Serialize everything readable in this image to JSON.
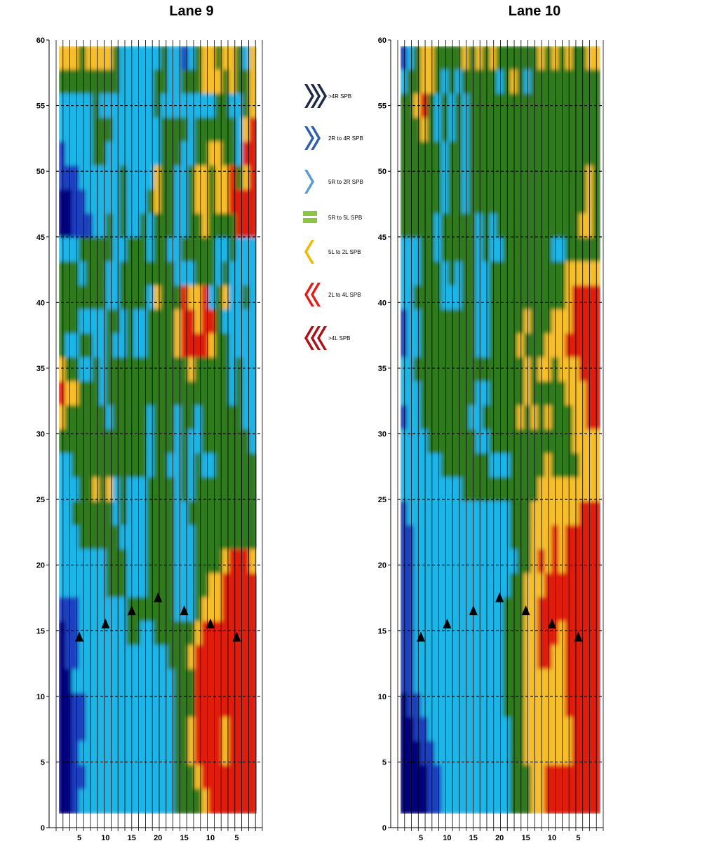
{
  "palette": {
    "gt4R": "#000080",
    "2Rto4R": "#1f3fbf",
    "5Rto2R": "#1fb5e8",
    "5Rto5L": "#2d7a1e",
    "5Lto2L": "#f5be2a",
    "2Lto4L": "#e01e10",
    "gt4L": "#7a0000"
  },
  "legend": [
    {
      "label": ">4R SPB",
      "icon": "chevron-right-3-icon",
      "color": "#1c2a45",
      "count": 3,
      "dir": "right"
    },
    {
      "label": "2R to 4R SPB",
      "icon": "chevron-right-2-icon",
      "color": "#2f5db0",
      "count": 2,
      "dir": "right"
    },
    {
      "label": "5R to 2R SPB",
      "icon": "chevron-right-1-icon",
      "color": "#5b9bd6",
      "count": 1,
      "dir": "right"
    },
    {
      "label": "5R to 5L SPB",
      "icon": "equals-bar-icon",
      "color": "#8cc63f",
      "count": 0,
      "dir": "equal"
    },
    {
      "label": "5L to 2L SPB",
      "icon": "chevron-left-1-icon",
      "color": "#f7b500",
      "count": 1,
      "dir": "left"
    },
    {
      "label": "2L to 4L SPB",
      "icon": "chevron-left-2-icon",
      "color": "#e31b1b",
      "count": 2,
      "dir": "left"
    },
    {
      "label": ">4L SPB",
      "icon": "chevron-left-3-icon",
      "color": "#b01015",
      "count": 3,
      "dir": "left"
    }
  ],
  "chart_data": [
    {
      "type": "heatmap",
      "title": "Lane 9",
      "ylim": [
        0,
        60
      ],
      "y_ticks": [
        0,
        5,
        10,
        15,
        20,
        25,
        30,
        35,
        40,
        45,
        50,
        55,
        60
      ],
      "x_tick_labels": [
        "5",
        "10",
        "15",
        "20",
        "15",
        "10",
        "5"
      ],
      "grid": "dashed horizontal at y ticks, vertical column lines",
      "markers": [
        {
          "label_index": 0,
          "y": 14.5
        },
        {
          "label_index": 1,
          "y": 15.5
        },
        {
          "label_index": 2,
          "y": 16.5
        },
        {
          "label_index": 3,
          "y": 17.5
        },
        {
          "label_index": 4,
          "y": 16.5
        },
        {
          "label_index": 5,
          "y": 15.5
        },
        {
          "label_index": 6,
          "y": 14.5
        }
      ],
      "rows_top_to_bottom": [
        "55545555433333343323455455435",
        "44444444433333443344455545445",
        "33333433333333433333333443345",
        "33333444333333344443444444356",
        "23333443333333344433445544366",
        "22233333343333544334554556456",
        "11223333343334544334554556666",
        "11222334343343444334454444666",
        "33344444334443443344444334333",
        "44434443344444444333444343333",
        "44444443344443544465563453343",
        "44433334434334444566566433333",
        "43344334334334444566665443333",
        "54433434444444444445444443433",
        "65544434444444444444444443433",
        "54444443444443444344344444433",
        "44444444444443444343344444443",
        "33444444444443443343433444444",
        "33344545343334444343444444444",
        "33444444343334444334444444444",
        "33344444433334444333444444444",
        "33333334443334444333444456665",
        "33333334443334444333445566666",
        "22233333334444444333455566666",
        "12233333334433444444566666666",
        "12233333333333334445666666666",
        "11333333333333333444666666666",
        "11223333333333333444666666666",
        "11223333333333333445666656666",
        "11233333333333333445666656666",
        "11223333333333333444566666666",
        "11233333333333333444456666666"
      ]
    },
    {
      "type": "heatmap",
      "title": "Lane 10",
      "ylim": [
        0,
        60
      ],
      "y_ticks": [
        0,
        5,
        10,
        15,
        20,
        25,
        30,
        35,
        40,
        45,
        50,
        55,
        60
      ],
      "x_tick_labels": [
        "5",
        "10",
        "15",
        "20",
        "15",
        "10",
        "5"
      ],
      "grid": "dashed horizontal at y ticks, vertical column lines",
      "markers": [
        {
          "label_index": 0,
          "y": 14.5
        },
        {
          "label_index": 1,
          "y": 15.5
        },
        {
          "label_index": 2,
          "y": 16.5
        },
        {
          "label_index": 3,
          "y": 17.5
        },
        {
          "label_index": 4,
          "y": 16.5
        },
        {
          "label_index": 5,
          "y": 15.5
        },
        {
          "label_index": 6,
          "y": 14.5
        }
      ],
      "rows_top_to_bottom": [
        "23455444454545444444545454455",
        "34455434344444345434444444444",
        "44564343434444444444444444444",
        "44454343434444444444444444444",
        "44444434434444444444444444444",
        "44444434434444444444444444454",
        "44444434434444444444444444454",
        "44444344444343444444444444554",
        "33344344444343344444443344444",
        "33344434344334444444444455555",
        "33444433344334444444444456666",
        "23344444444334444454445556666",
        "23344444444334444544455566666",
        "33444444444444444454554555666",
        "33344444444334444454444455566",
        "23344444443344444545454445566",
        "33334444444334444444444445555",
        "33333344444443334444454444555",
        "33333333344444444444555555555",
        "23333333333333334445555555666",
        "22333333333333334445556566666",
        "22333333333333333445656566666",
        "22333333333333334455566666666",
        "22333333333333344455666666666",
        "22333333333333344455666566666",
        "22333333333333344455665566666",
        "22333333333333344455555566666",
        "12233333333333344455555566666",
        "11223333333333334455555556666",
        "11122333333333334455555556666",
        "11112233333333334445566666666",
        "11112233333333334445566666666"
      ]
    }
  ]
}
